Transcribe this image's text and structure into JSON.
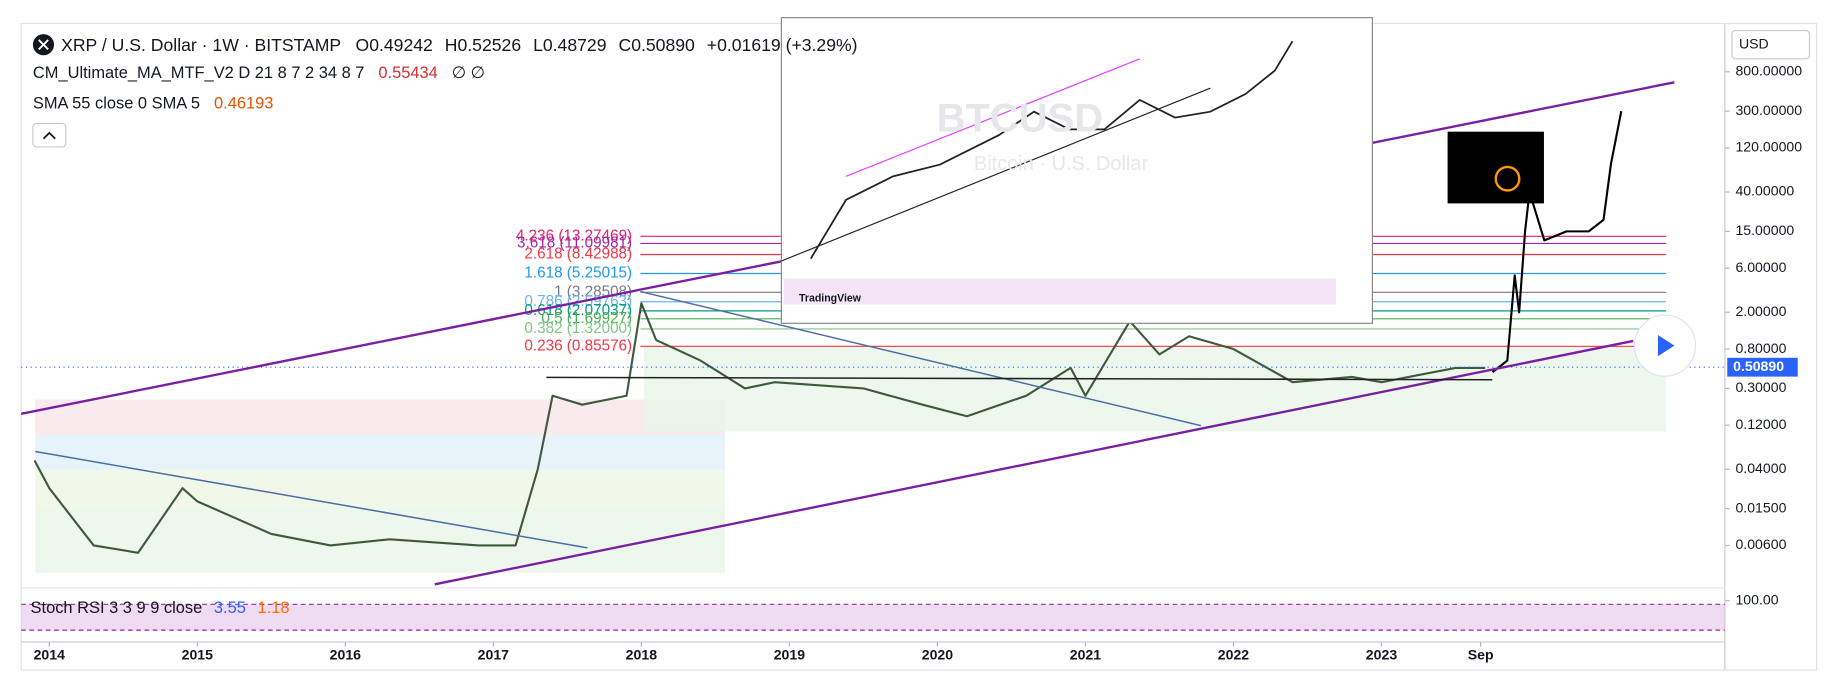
{
  "chart_data": {
    "type": "line",
    "header": {
      "symbol": "XRP / U.S. Dollar · 1W · BITSTAMP",
      "open": "O0.49242",
      "high": "H0.52526",
      "low": "L0.48729",
      "close": "C0.50890",
      "change": "+0.01619 (+3.29%)"
    },
    "indicators": [
      {
        "title": "CM_Ultimate_MA_MTF_V2 D 21 8 7 2 34 8 7",
        "value": "0.55434",
        "extra": "∅ ∅"
      },
      {
        "title": "SMA 55 close 0 SMA 5",
        "value": "0.46193"
      }
    ],
    "currency": "USD",
    "log_scale": true,
    "xlim": [
      2013.81,
      2025.32
    ],
    "ylim": [
      0.00228,
      2660
    ],
    "xticks": [
      2014,
      2015,
      2016,
      2017,
      2018,
      2019,
      2020,
      2021,
      2022,
      2023,
      {
        "value": 2023.67,
        "label": "Sep"
      }
    ],
    "yticks": [
      {
        "value": 800,
        "label": "800.00000"
      },
      {
        "value": 300,
        "label": "300.00000"
      },
      {
        "value": 120,
        "label": "120.00000"
      },
      {
        "value": 40,
        "label": "40.00000"
      },
      {
        "value": 15,
        "label": "15.00000"
      },
      {
        "value": 6,
        "label": "6.00000"
      },
      {
        "value": 2,
        "label": "2.00000"
      },
      {
        "value": 0.8,
        "label": "0.80000"
      },
      {
        "value": 0.3,
        "label": "0.30000"
      },
      {
        "value": 0.12,
        "label": "0.12000"
      },
      {
        "value": 0.04,
        "label": "0.04000"
      },
      {
        "value": 0.015,
        "label": "0.01500"
      },
      {
        "value": 0.006,
        "label": "0.00600"
      }
    ],
    "last_price": {
      "value": 0.5089,
      "label": "0.50890",
      "color": "#2962ff"
    },
    "x": [
      2013.9,
      2014.0,
      2014.3,
      2014.6,
      2014.9,
      2015.0,
      2015.5,
      2015.9,
      2016.3,
      2016.9,
      2017.15,
      2017.3,
      2017.4,
      2017.6,
      2017.9,
      2018.0,
      2018.1,
      2018.4,
      2018.7,
      2018.9,
      2019.5,
      2019.9,
      2020.2,
      2020.6,
      2020.9,
      2021.0,
      2021.3,
      2021.5,
      2021.7,
      2022.0,
      2022.4,
      2022.8,
      2023.0,
      2023.5,
      2023.7,
      2023.75,
      2023.85,
      2023.9,
      2023.93,
      2023.97,
      2024.0,
      2024.1,
      2024.25,
      2024.4,
      2024.5,
      2024.55,
      2024.62
    ],
    "series": [
      {
        "color": "#3d5a3a",
        "values": [
          0.05,
          0.025,
          0.006,
          0.005,
          0.025,
          0.018,
          0.008,
          0.006,
          0.007,
          0.006,
          0.006,
          0.04,
          0.25,
          0.2,
          0.25,
          2.5,
          1.0,
          0.6,
          0.3,
          0.35,
          0.3,
          0.2,
          0.15,
          0.25,
          0.5,
          0.25,
          1.6,
          0.7,
          1.1,
          0.8,
          0.35,
          0.4,
          0.35,
          0.5,
          0.5,
          null,
          null,
          null,
          null,
          null,
          null,
          null,
          null,
          null,
          null,
          null,
          null
        ]
      },
      {
        "color": "#000000",
        "values": [
          null,
          null,
          null,
          null,
          null,
          null,
          null,
          null,
          null,
          null,
          null,
          null,
          null,
          null,
          null,
          null,
          null,
          null,
          null,
          null,
          null,
          null,
          null,
          null,
          null,
          null,
          null,
          null,
          null,
          null,
          null,
          null,
          null,
          null,
          null,
          0.45,
          0.6,
          5,
          2,
          15,
          40,
          12,
          15,
          15,
          20,
          80,
          300
        ]
      }
    ],
    "fib_levels": [
      {
        "label": "4.236 (13.27469)",
        "value": 13.27469,
        "color": "#e91e63"
      },
      {
        "label": "3.618 (11.09981)",
        "value": 11.09981,
        "color": "#9c27b0"
      },
      {
        "label": "2.618 (8.42988)",
        "value": 8.42988,
        "color": "#f23645"
      },
      {
        "label": "1.618 (5.25015)",
        "value": 5.25015,
        "color": "#2196f3"
      },
      {
        "label": "1 (3.28508)",
        "value": 3.28508,
        "color": "#787b86"
      },
      {
        "label": "0.786 (2.59763)",
        "value": 2.59763,
        "color": "#64b5f6"
      },
      {
        "label": "0.618 (2.07037)",
        "value": 2.07037,
        "color": "#089981"
      },
      {
        "label": "0.5 (1.69927)",
        "value": 1.69927,
        "color": "#4caf50"
      },
      {
        "label": "0.382 (1.32000)",
        "value": 1.32,
        "color": "#81c784"
      },
      {
        "label": "0.236 (0.85576)",
        "value": 0.85576,
        "color": "#f23645"
      }
    ],
    "stoch": {
      "title": "Stoch RSI 3 3 9 9 close",
      "k": "3.55",
      "d": "1.18",
      "yticks": [
        {
          "value": 100,
          "label": "100.00"
        }
      ]
    },
    "inset": {
      "title": "BTCUSD",
      "subtitle": "Bitcoin · U.S. Dollar",
      "brand": "TradingView"
    }
  }
}
